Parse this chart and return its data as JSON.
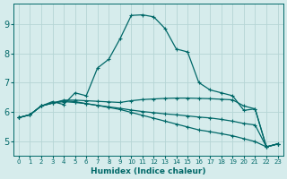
{
  "xlabel": "Humidex (Indice chaleur)",
  "ylabel": "",
  "background_color": "#d6ecec",
  "grid_color": "#b5d5d5",
  "line_color": "#006868",
  "xlim": [
    -0.5,
    23.5
  ],
  "ylim": [
    4.5,
    9.7
  ],
  "yticks": [
    5,
    6,
    7,
    8,
    9
  ],
  "xticks": [
    0,
    1,
    2,
    3,
    4,
    5,
    6,
    7,
    8,
    9,
    10,
    11,
    12,
    13,
    14,
    15,
    16,
    17,
    18,
    19,
    20,
    21,
    22,
    23
  ],
  "series": [
    {
      "x": [
        0,
        1,
        2,
        3,
        4,
        5,
        6,
        7,
        8,
        9,
        10,
        11,
        12,
        13,
        14,
        15,
        16,
        17,
        18,
        19,
        20,
        21,
        22,
        23
      ],
      "y": [
        5.8,
        5.9,
        6.2,
        6.35,
        6.25,
        6.65,
        6.55,
        7.5,
        7.8,
        8.5,
        9.3,
        9.32,
        9.25,
        8.85,
        8.15,
        8.05,
        7.0,
        6.75,
        6.65,
        6.55,
        6.05,
        6.1,
        4.8,
        4.9
      ]
    },
    {
      "x": [
        0,
        1,
        2,
        3,
        4,
        5,
        6,
        7,
        8,
        9,
        10,
        11,
        12,
        13,
        14,
        15,
        16,
        17,
        18,
        19,
        20,
        21,
        22,
        23
      ],
      "y": [
        5.8,
        5.9,
        6.2,
        6.3,
        6.4,
        6.4,
        6.38,
        6.36,
        6.34,
        6.32,
        6.38,
        6.42,
        6.44,
        6.46,
        6.47,
        6.47,
        6.46,
        6.45,
        6.43,
        6.41,
        6.2,
        6.1,
        4.8,
        4.9
      ]
    },
    {
      "x": [
        0,
        1,
        2,
        3,
        4,
        5,
        6,
        7,
        8,
        9,
        10,
        11,
        12,
        13,
        14,
        15,
        16,
        17,
        18,
        19,
        20,
        21,
        22,
        23
      ],
      "y": [
        5.8,
        5.9,
        6.2,
        6.3,
        6.38,
        6.35,
        6.28,
        6.22,
        6.15,
        6.08,
        5.98,
        5.88,
        5.78,
        5.68,
        5.58,
        5.48,
        5.38,
        5.32,
        5.25,
        5.18,
        5.08,
        4.98,
        4.8,
        4.9
      ]
    },
    {
      "x": [
        0,
        1,
        2,
        3,
        4,
        5,
        6,
        7,
        8,
        9,
        10,
        11,
        12,
        13,
        14,
        15,
        16,
        17,
        18,
        19,
        20,
        21,
        22,
        23
      ],
      "y": [
        5.8,
        5.9,
        6.2,
        6.3,
        6.35,
        6.32,
        6.28,
        6.22,
        6.17,
        6.12,
        6.06,
        6.01,
        5.97,
        5.93,
        5.9,
        5.86,
        5.82,
        5.79,
        5.74,
        5.68,
        5.6,
        5.55,
        4.8,
        4.9
      ]
    }
  ]
}
